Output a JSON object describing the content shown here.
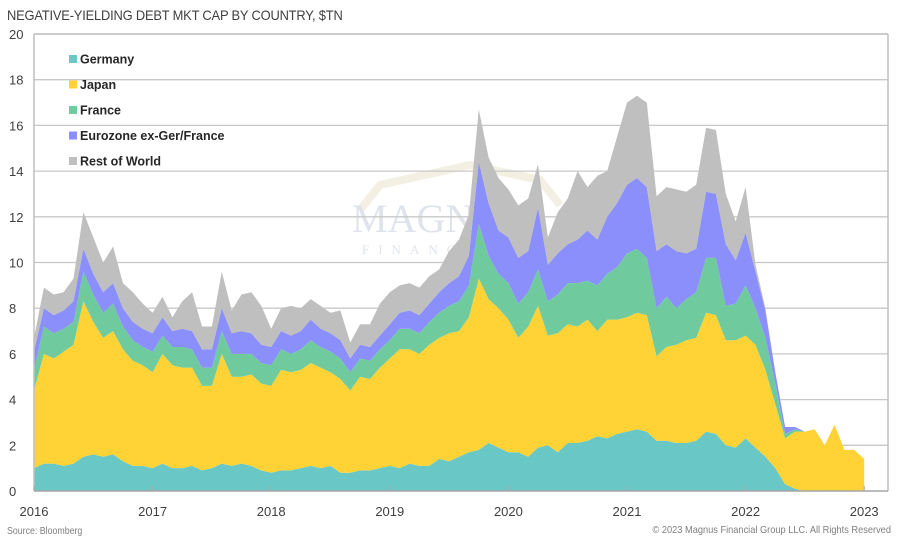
{
  "chart_data": {
    "type": "area",
    "stacked": true,
    "title": "NEGATIVE-YIELDING DEBT MKT CAP BY COUNTRY, $TN",
    "xlabel": "",
    "ylabel": "",
    "ylim": [
      0,
      20
    ],
    "yticks": [
      0,
      2,
      4,
      6,
      8,
      10,
      12,
      14,
      16,
      18,
      20
    ],
    "xticks": [
      "2016",
      "2017",
      "2018",
      "2019",
      "2020",
      "2021",
      "2022",
      "2023"
    ],
    "x_start": "2016-01",
    "x_frequency": "monthly",
    "grid": true,
    "legend_position": "top-left",
    "series": [
      {
        "name": "Germany",
        "color": "#69c8c6",
        "values": [
          1.0,
          1.2,
          1.2,
          1.1,
          1.2,
          1.5,
          1.6,
          1.5,
          1.6,
          1.3,
          1.1,
          1.1,
          1.0,
          1.2,
          1.0,
          1.0,
          1.1,
          0.9,
          1.0,
          1.2,
          1.1,
          1.2,
          1.1,
          0.9,
          0.8,
          0.9,
          0.9,
          1.0,
          1.1,
          1.0,
          1.1,
          0.8,
          0.8,
          0.9,
          0.9,
          1.0,
          1.1,
          1.0,
          1.2,
          1.1,
          1.1,
          1.4,
          1.3,
          1.5,
          1.7,
          1.8,
          2.1,
          1.9,
          1.7,
          1.7,
          1.5,
          1.9,
          2.0,
          1.7,
          2.1,
          2.1,
          2.2,
          2.4,
          2.3,
          2.5,
          2.6,
          2.7,
          2.6,
          2.2,
          2.2,
          2.1,
          2.1,
          2.2,
          2.6,
          2.5,
          2.0,
          1.9,
          2.3,
          1.9,
          1.5,
          1.0,
          0.3,
          0.1,
          0,
          0,
          0,
          0,
          0,
          0,
          0
        ]
      },
      {
        "name": "Japan",
        "color": "#ffd335",
        "values": [
          3.4,
          4.8,
          4.6,
          5.0,
          5.2,
          6.8,
          5.8,
          5.2,
          5.4,
          4.9,
          4.6,
          4.4,
          4.2,
          4.8,
          4.5,
          4.4,
          4.3,
          3.7,
          3.6,
          4.8,
          3.9,
          3.8,
          4.0,
          3.8,
          3.8,
          4.4,
          4.3,
          4.3,
          4.5,
          4.4,
          4.1,
          4.1,
          3.6,
          4.1,
          4.0,
          4.4,
          4.7,
          5.2,
          5.0,
          4.9,
          5.3,
          5.3,
          5.6,
          5.5,
          5.9,
          7.5,
          6.3,
          6.1,
          5.8,
          5.0,
          5.7,
          6.2,
          4.8,
          5.2,
          5.2,
          5.1,
          5.3,
          4.6,
          5.2,
          5.0,
          5.0,
          5.1,
          5.1,
          3.7,
          4.1,
          4.3,
          4.5,
          4.5,
          5.2,
          5.2,
          4.6,
          4.7,
          4.5,
          4.5,
          3.8,
          2.8,
          2.0,
          2.5,
          2.6,
          2.7,
          2.0,
          2.9,
          1.8,
          1.8,
          1.4
        ]
      },
      {
        "name": "France",
        "color": "#6fcb9e",
        "values": [
          0.9,
          1.2,
          1.1,
          1.0,
          1.0,
          1.3,
          1.2,
          1.1,
          1.2,
          1.0,
          0.9,
          0.8,
          0.9,
          0.8,
          0.8,
          0.9,
          0.8,
          0.8,
          0.8,
          1.0,
          1.0,
          1.0,
          0.9,
          0.9,
          0.9,
          0.9,
          0.8,
          0.9,
          1.0,
          0.9,
          0.9,
          0.9,
          0.8,
          0.8,
          0.8,
          0.8,
          0.8,
          0.9,
          0.9,
          0.9,
          1.0,
          1.1,
          1.2,
          1.3,
          1.4,
          2.4,
          1.9,
          1.5,
          1.6,
          1.5,
          1.5,
          1.6,
          1.5,
          1.7,
          1.8,
          1.9,
          1.7,
          2.0,
          2.0,
          2.3,
          2.8,
          2.8,
          2.5,
          2.1,
          2.2,
          1.6,
          1.8,
          2.0,
          2.4,
          2.5,
          1.5,
          1.6,
          2.2,
          1.6,
          1.4,
          0.9,
          0.2,
          0.1,
          0,
          0,
          0,
          0,
          0,
          0,
          0
        ]
      },
      {
        "name": "Eurozone ex-Ger/France",
        "color": "#8a8ffb",
        "values": [
          0.8,
          0.8,
          0.8,
          0.8,
          0.9,
          1.0,
          0.9,
          0.9,
          0.9,
          0.8,
          0.8,
          0.8,
          0.8,
          0.8,
          0.7,
          0.8,
          0.8,
          0.8,
          0.8,
          1.0,
          0.9,
          1.0,
          0.9,
          0.8,
          0.8,
          0.8,
          0.8,
          0.8,
          0.9,
          0.8,
          0.8,
          0.8,
          0.6,
          0.6,
          0.6,
          0.6,
          0.7,
          0.7,
          0.8,
          0.8,
          0.8,
          0.9,
          1.0,
          1.1,
          1.3,
          2.7,
          2.3,
          1.9,
          2.0,
          2.0,
          1.8,
          2.7,
          1.6,
          1.8,
          1.7,
          1.9,
          2.2,
          2.0,
          2.5,
          2.8,
          3.0,
          3.1,
          3.1,
          2.5,
          2.3,
          2.5,
          2.0,
          1.9,
          2.9,
          2.8,
          2.7,
          1.9,
          2.3,
          1.6,
          1.2,
          0.5,
          0.3,
          0.1,
          0,
          0,
          0,
          0,
          0,
          0,
          0
        ]
      },
      {
        "name": "Rest of World",
        "color": "#bfbfbf",
        "values": [
          0.6,
          0.9,
          0.9,
          0.8,
          1.0,
          1.6,
          1.6,
          1.3,
          1.6,
          1.1,
          1.3,
          1.1,
          0.9,
          0.9,
          0.6,
          1.2,
          1.7,
          1.0,
          1.0,
          1.6,
          1.0,
          1.6,
          1.8,
          1.7,
          0.8,
          1.0,
          1.3,
          1.0,
          0.9,
          1.0,
          0.9,
          1.3,
          0.7,
          0.9,
          1.0,
          1.4,
          1.4,
          1.2,
          1.2,
          1.2,
          1.2,
          1.0,
          1.4,
          1.6,
          1.8,
          2.3,
          2.0,
          2.3,
          2.1,
          2.3,
          2.3,
          1.9,
          1.2,
          1.8,
          2.0,
          3.0,
          1.9,
          2.8,
          2.0,
          2.9,
          3.6,
          3.6,
          3.7,
          2.4,
          2.5,
          2.7,
          2.7,
          2.8,
          2.8,
          2.8,
          2.2,
          1.7,
          2.0,
          0.3,
          0.1,
          0,
          0,
          0,
          0,
          0,
          0,
          0,
          0,
          0,
          0
        ]
      }
    ]
  },
  "footer": {
    "source": "Source: Bloomberg",
    "copyright": "© 2023 Magnus Financial Group LLC. All Rights Reserved"
  },
  "watermark": {
    "line1": "MAGNUS",
    "line2": "FINANCIAL"
  }
}
